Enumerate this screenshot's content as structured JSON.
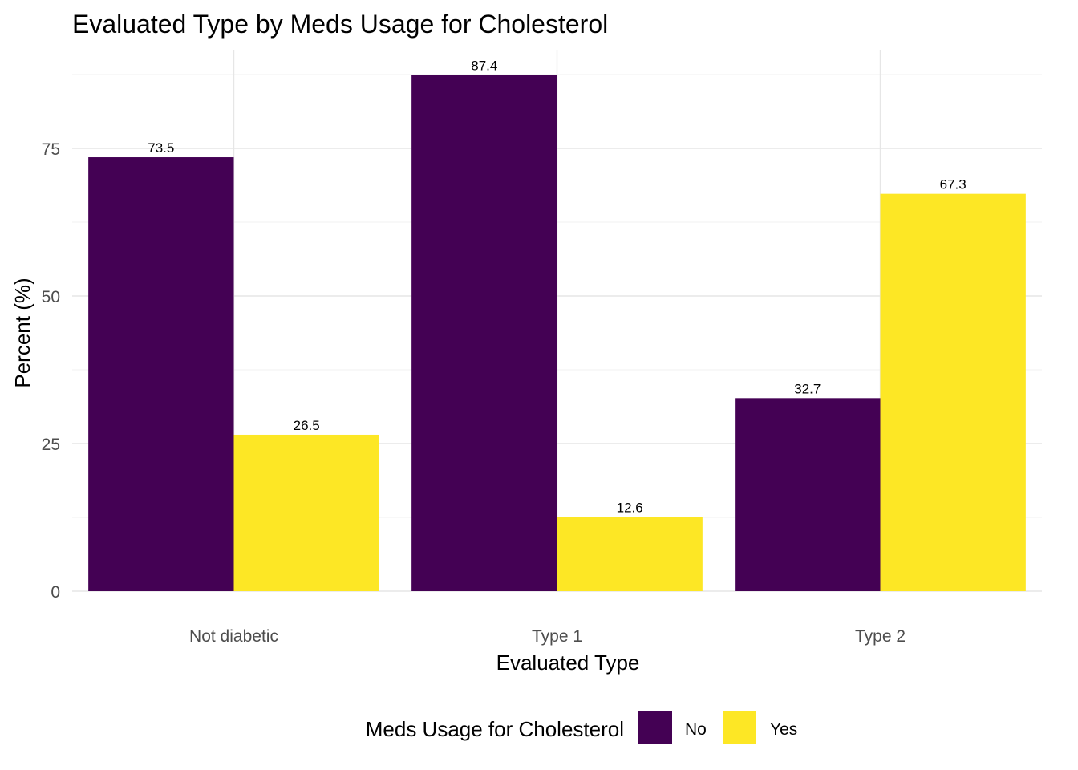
{
  "chart_data": {
    "type": "bar",
    "title": "Evaluated Type by Meds Usage for Cholesterol",
    "xlabel": "Evaluated Type",
    "ylabel": "Percent (%)",
    "categories": [
      "Not diabetic",
      "Type 1",
      "Type 2"
    ],
    "series": [
      {
        "name": "No",
        "color": "#440154",
        "values": [
          73.5,
          87.4,
          32.7
        ],
        "labels": [
          "73.5",
          "87.4",
          "32.7"
        ]
      },
      {
        "name": "Yes",
        "color": "#FDE725",
        "values": [
          26.5,
          12.6,
          67.3
        ],
        "labels": [
          "26.5",
          "12.6",
          "67.3"
        ]
      }
    ],
    "ylim": [
      0,
      88
    ],
    "yticks": [
      0,
      25,
      50,
      75
    ],
    "ytick_labels": [
      "0",
      "25",
      "50",
      "75"
    ],
    "grid": true,
    "legend": {
      "title": "Meds Usage for Cholesterol",
      "position": "bottom",
      "entries": [
        "No",
        "Yes"
      ]
    }
  }
}
